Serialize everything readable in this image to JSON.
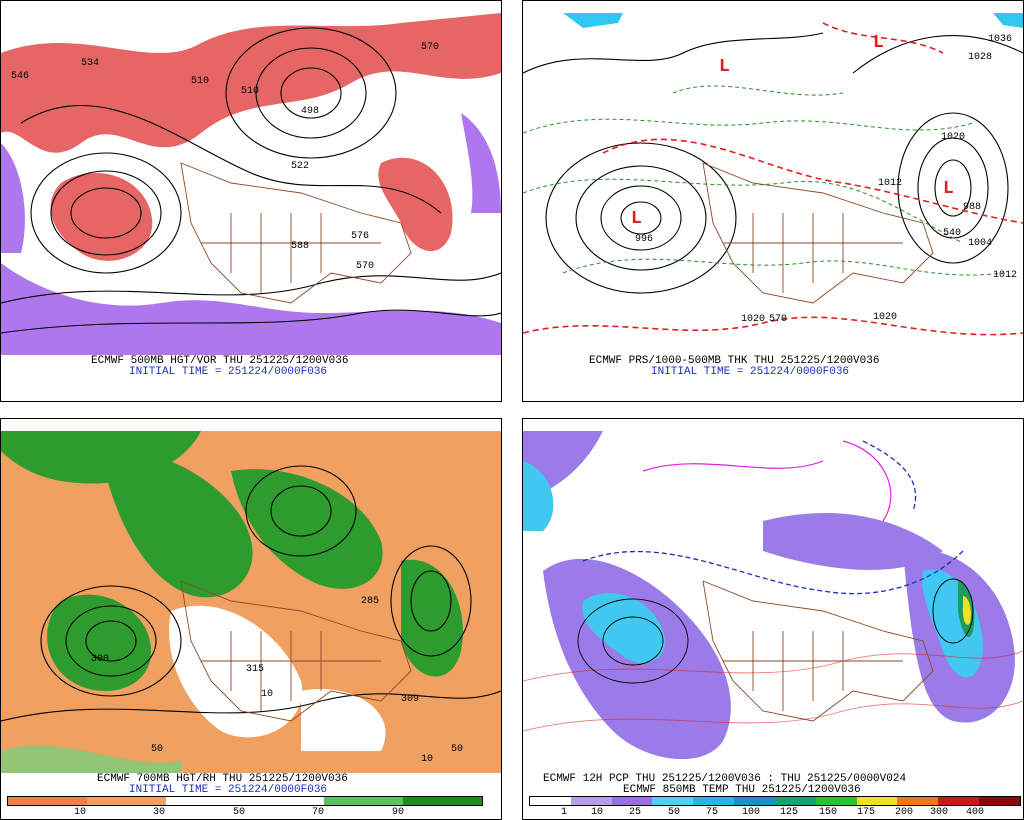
{
  "panels": [
    {
      "id": "tl",
      "title": "ECMWF 500MB HGT/VOR THU 251225/1200V036",
      "subtitle": "INITIAL TIME = 251224/0000F036",
      "contour_labels": [
        "546",
        "534",
        "510",
        "570",
        "588",
        "576",
        "570",
        "522",
        "498",
        "510"
      ]
    },
    {
      "id": "tr",
      "title": "ECMWF PRS/1000-500MB THK THU 251225/1200V036",
      "subtitle": "INITIAL TIME = 251224/0000F036",
      "contour_labels": [
        "1036",
        "1028",
        "1020",
        "1012",
        "1004",
        "996",
        "988",
        "1020",
        "570",
        "1020",
        "1012",
        "540"
      ],
      "low_marker": "L"
    },
    {
      "id": "bl",
      "title": "ECMWF 700MB HGT/RH THU 251225/1200V036",
      "subtitle": "INITIAL TIME = 251224/0000F036",
      "contour_labels": [
        "315",
        "309",
        "300",
        "50",
        "10",
        "50",
        "10",
        "285"
      ]
    },
    {
      "id": "br",
      "title": "ECMWF 12H PCP THU 251225/1200V036 : THU 251225/0000V024",
      "subtitle": "ECMWF 850MB TEMP THU 251225/1200V036"
    }
  ],
  "rh_colorbar": {
    "labels": [
      "10",
      "30",
      "50",
      "70",
      "90"
    ],
    "colors": [
      "#e8834a",
      "#f0a060",
      "#ffffff",
      "#ffffff",
      "#5cc25c",
      "#1c8c1c"
    ]
  },
  "pcp_colorbar": {
    "labels": [
      "1",
      "10",
      "25",
      "50",
      "75",
      "100",
      "125",
      "150",
      "175",
      "200",
      "300",
      "400"
    ],
    "colors": [
      "#ffffff",
      "#b69ee8",
      "#9b6fe0",
      "#4fd2f0",
      "#25b8e0",
      "#1890c8",
      "#1fa070",
      "#30c030",
      "#f0e020",
      "#f07818",
      "#c81818",
      "#8a0a0a"
    ]
  }
}
